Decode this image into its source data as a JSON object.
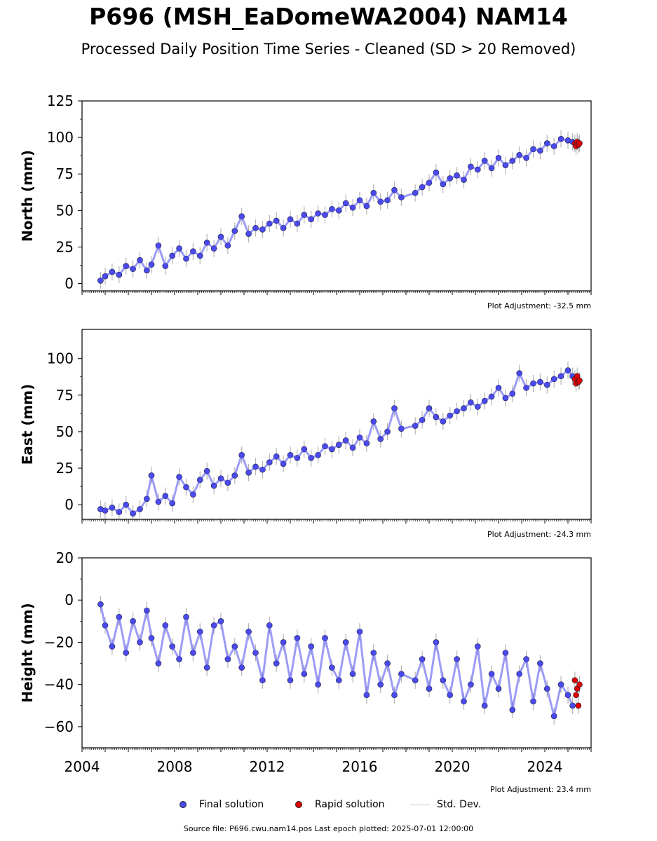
{
  "title": "P696 (MSH_EaDomeWA2004) NAM14",
  "subtitle": "Processed Daily Position Time Series - Cleaned (SD > 20 Removed)",
  "legend": {
    "final": "Final solution",
    "rapid": "Rapid solution",
    "stddev": "Std. Dev."
  },
  "footer": "Source file: P696.cwu.nam14.pos  Last epoch plotted: 2025-07-01 12:00:00",
  "colors": {
    "final": "#4a4af0",
    "rapid": "#e00000",
    "stddev": "#b4b4b4",
    "edge": "#1c1c3a"
  },
  "chart_data": [
    {
      "type": "scatter",
      "ylabel": "North (mm)",
      "adjustment": "Plot Adjustment: -32.5 mm",
      "xlim": [
        2004.0,
        2026.0
      ],
      "ylim": [
        -5,
        125
      ],
      "yticks": [
        0,
        25,
        50,
        75,
        100,
        125
      ],
      "xticks": [
        2004,
        2008,
        2012,
        2016,
        2020,
        2024
      ],
      "series": [
        {
          "name": "Final solution",
          "x": [
            2004.8,
            2005.0,
            2005.3,
            2005.6,
            2005.9,
            2006.2,
            2006.5,
            2006.8,
            2007.0,
            2007.3,
            2007.6,
            2007.9,
            2008.2,
            2008.5,
            2008.8,
            2009.1,
            2009.4,
            2009.7,
            2010.0,
            2010.3,
            2010.6,
            2010.9,
            2011.2,
            2011.5,
            2011.8,
            2012.1,
            2012.4,
            2012.7,
            2013.0,
            2013.3,
            2013.6,
            2013.9,
            2014.2,
            2014.5,
            2014.8,
            2015.1,
            2015.4,
            2015.7,
            2016.0,
            2016.3,
            2016.6,
            2016.9,
            2017.2,
            2017.5,
            2017.8,
            2018.4,
            2018.7,
            2019.0,
            2019.3,
            2019.6,
            2019.9,
            2020.2,
            2020.5,
            2020.8,
            2021.1,
            2021.4,
            2021.7,
            2022.0,
            2022.3,
            2022.6,
            2022.9,
            2023.2,
            2023.5,
            2023.8,
            2024.1,
            2024.4,
            2024.7,
            2025.0,
            2025.2
          ],
          "y": [
            2,
            5,
            8,
            6,
            12,
            10,
            16,
            9,
            13,
            26,
            12,
            19,
            24,
            17,
            22,
            19,
            28,
            24,
            32,
            26,
            36,
            46,
            34,
            38,
            37,
            41,
            43,
            38,
            44,
            41,
            47,
            44,
            48,
            47,
            51,
            50,
            55,
            52,
            57,
            53,
            62,
            56,
            57,
            64,
            59,
            62,
            66,
            69,
            76,
            68,
            72,
            74,
            71,
            80,
            78,
            84,
            79,
            86,
            81,
            84,
            88,
            86,
            92,
            91,
            96,
            94,
            99,
            98,
            97
          ]
        },
        {
          "name": "Rapid solution",
          "x": [
            2025.3,
            2025.35,
            2025.4,
            2025.45,
            2025.5
          ],
          "y": [
            96,
            94,
            97,
            95,
            96
          ]
        }
      ]
    },
    {
      "type": "scatter",
      "ylabel": "East (mm)",
      "adjustment": "Plot Adjustment: -24.3 mm",
      "xlim": [
        2004.0,
        2026.0
      ],
      "ylim": [
        -10,
        120
      ],
      "yticks": [
        0,
        25,
        50,
        75,
        100
      ],
      "xticks": [
        2004,
        2008,
        2012,
        2016,
        2020,
        2024
      ],
      "series": [
        {
          "name": "Final solution",
          "x": [
            2004.8,
            2005.0,
            2005.3,
            2005.6,
            2005.9,
            2006.2,
            2006.5,
            2006.8,
            2007.0,
            2007.3,
            2007.6,
            2007.9,
            2008.2,
            2008.5,
            2008.8,
            2009.1,
            2009.4,
            2009.7,
            2010.0,
            2010.3,
            2010.6,
            2010.9,
            2011.2,
            2011.5,
            2011.8,
            2012.1,
            2012.4,
            2012.7,
            2013.0,
            2013.3,
            2013.6,
            2013.9,
            2014.2,
            2014.5,
            2014.8,
            2015.1,
            2015.4,
            2015.7,
            2016.0,
            2016.3,
            2016.6,
            2016.9,
            2017.2,
            2017.5,
            2017.8,
            2018.4,
            2018.7,
            2019.0,
            2019.3,
            2019.6,
            2019.9,
            2020.2,
            2020.5,
            2020.8,
            2021.1,
            2021.4,
            2021.7,
            2022.0,
            2022.3,
            2022.6,
            2022.9,
            2023.2,
            2023.5,
            2023.8,
            2024.1,
            2024.4,
            2024.7,
            2025.0,
            2025.2
          ],
          "y": [
            -3,
            -4,
            -2,
            -5,
            0,
            -6,
            -3,
            4,
            20,
            2,
            6,
            1,
            19,
            12,
            7,
            17,
            23,
            13,
            18,
            15,
            20,
            34,
            22,
            26,
            24,
            29,
            33,
            28,
            34,
            32,
            38,
            32,
            34,
            40,
            38,
            41,
            44,
            39,
            46,
            42,
            57,
            45,
            50,
            66,
            52,
            54,
            58,
            66,
            60,
            57,
            61,
            64,
            66,
            70,
            67,
            71,
            74,
            80,
            73,
            76,
            90,
            80,
            83,
            84,
            82,
            86,
            88,
            92,
            88
          ]
        },
        {
          "name": "Rapid solution",
          "x": [
            2025.3,
            2025.35,
            2025.4,
            2025.45,
            2025.5
          ],
          "y": [
            86,
            83,
            88,
            84,
            85
          ]
        }
      ]
    },
    {
      "type": "scatter",
      "ylabel": "Height (mm)",
      "adjustment": "Plot Adjustment: 23.4 mm",
      "xlim": [
        2004.0,
        2026.0
      ],
      "ylim": [
        -70,
        20
      ],
      "yticks": [
        -60,
        -40,
        -20,
        0,
        20
      ],
      "xticks": [
        2004,
        2008,
        2012,
        2016,
        2020,
        2024
      ],
      "series": [
        {
          "name": "Final solution",
          "x": [
            2004.8,
            2005.0,
            2005.3,
            2005.6,
            2005.9,
            2006.2,
            2006.5,
            2006.8,
            2007.0,
            2007.3,
            2007.6,
            2007.9,
            2008.2,
            2008.5,
            2008.8,
            2009.1,
            2009.4,
            2009.7,
            2010.0,
            2010.3,
            2010.6,
            2010.9,
            2011.2,
            2011.5,
            2011.8,
            2012.1,
            2012.4,
            2012.7,
            2013.0,
            2013.3,
            2013.6,
            2013.9,
            2014.2,
            2014.5,
            2014.8,
            2015.1,
            2015.4,
            2015.7,
            2016.0,
            2016.3,
            2016.6,
            2016.9,
            2017.2,
            2017.5,
            2017.8,
            2018.4,
            2018.7,
            2019.0,
            2019.3,
            2019.6,
            2019.9,
            2020.2,
            2020.5,
            2020.8,
            2021.1,
            2021.4,
            2021.7,
            2022.0,
            2022.3,
            2022.6,
            2022.9,
            2023.2,
            2023.5,
            2023.8,
            2024.1,
            2024.4,
            2024.7,
            2025.0,
            2025.2
          ],
          "y": [
            -2,
            -12,
            -22,
            -8,
            -25,
            -10,
            -20,
            -5,
            -18,
            -30,
            -12,
            -22,
            -28,
            -8,
            -25,
            -15,
            -32,
            -12,
            -10,
            -28,
            -22,
            -32,
            -15,
            -25,
            -38,
            -12,
            -30,
            -20,
            -38,
            -18,
            -35,
            -22,
            -40,
            -18,
            -32,
            -38,
            -20,
            -35,
            -15,
            -45,
            -25,
            -40,
            -30,
            -45,
            -35,
            -38,
            -28,
            -42,
            -20,
            -38,
            -45,
            -28,
            -48,
            -40,
            -22,
            -50,
            -35,
            -42,
            -25,
            -52,
            -35,
            -28,
            -48,
            -30,
            -42,
            -55,
            -40,
            -45,
            -50
          ]
        },
        {
          "name": "Rapid solution",
          "x": [
            2025.3,
            2025.35,
            2025.4,
            2025.45,
            2025.5
          ],
          "y": [
            -38,
            -45,
            -42,
            -50,
            -40
          ]
        }
      ]
    }
  ]
}
